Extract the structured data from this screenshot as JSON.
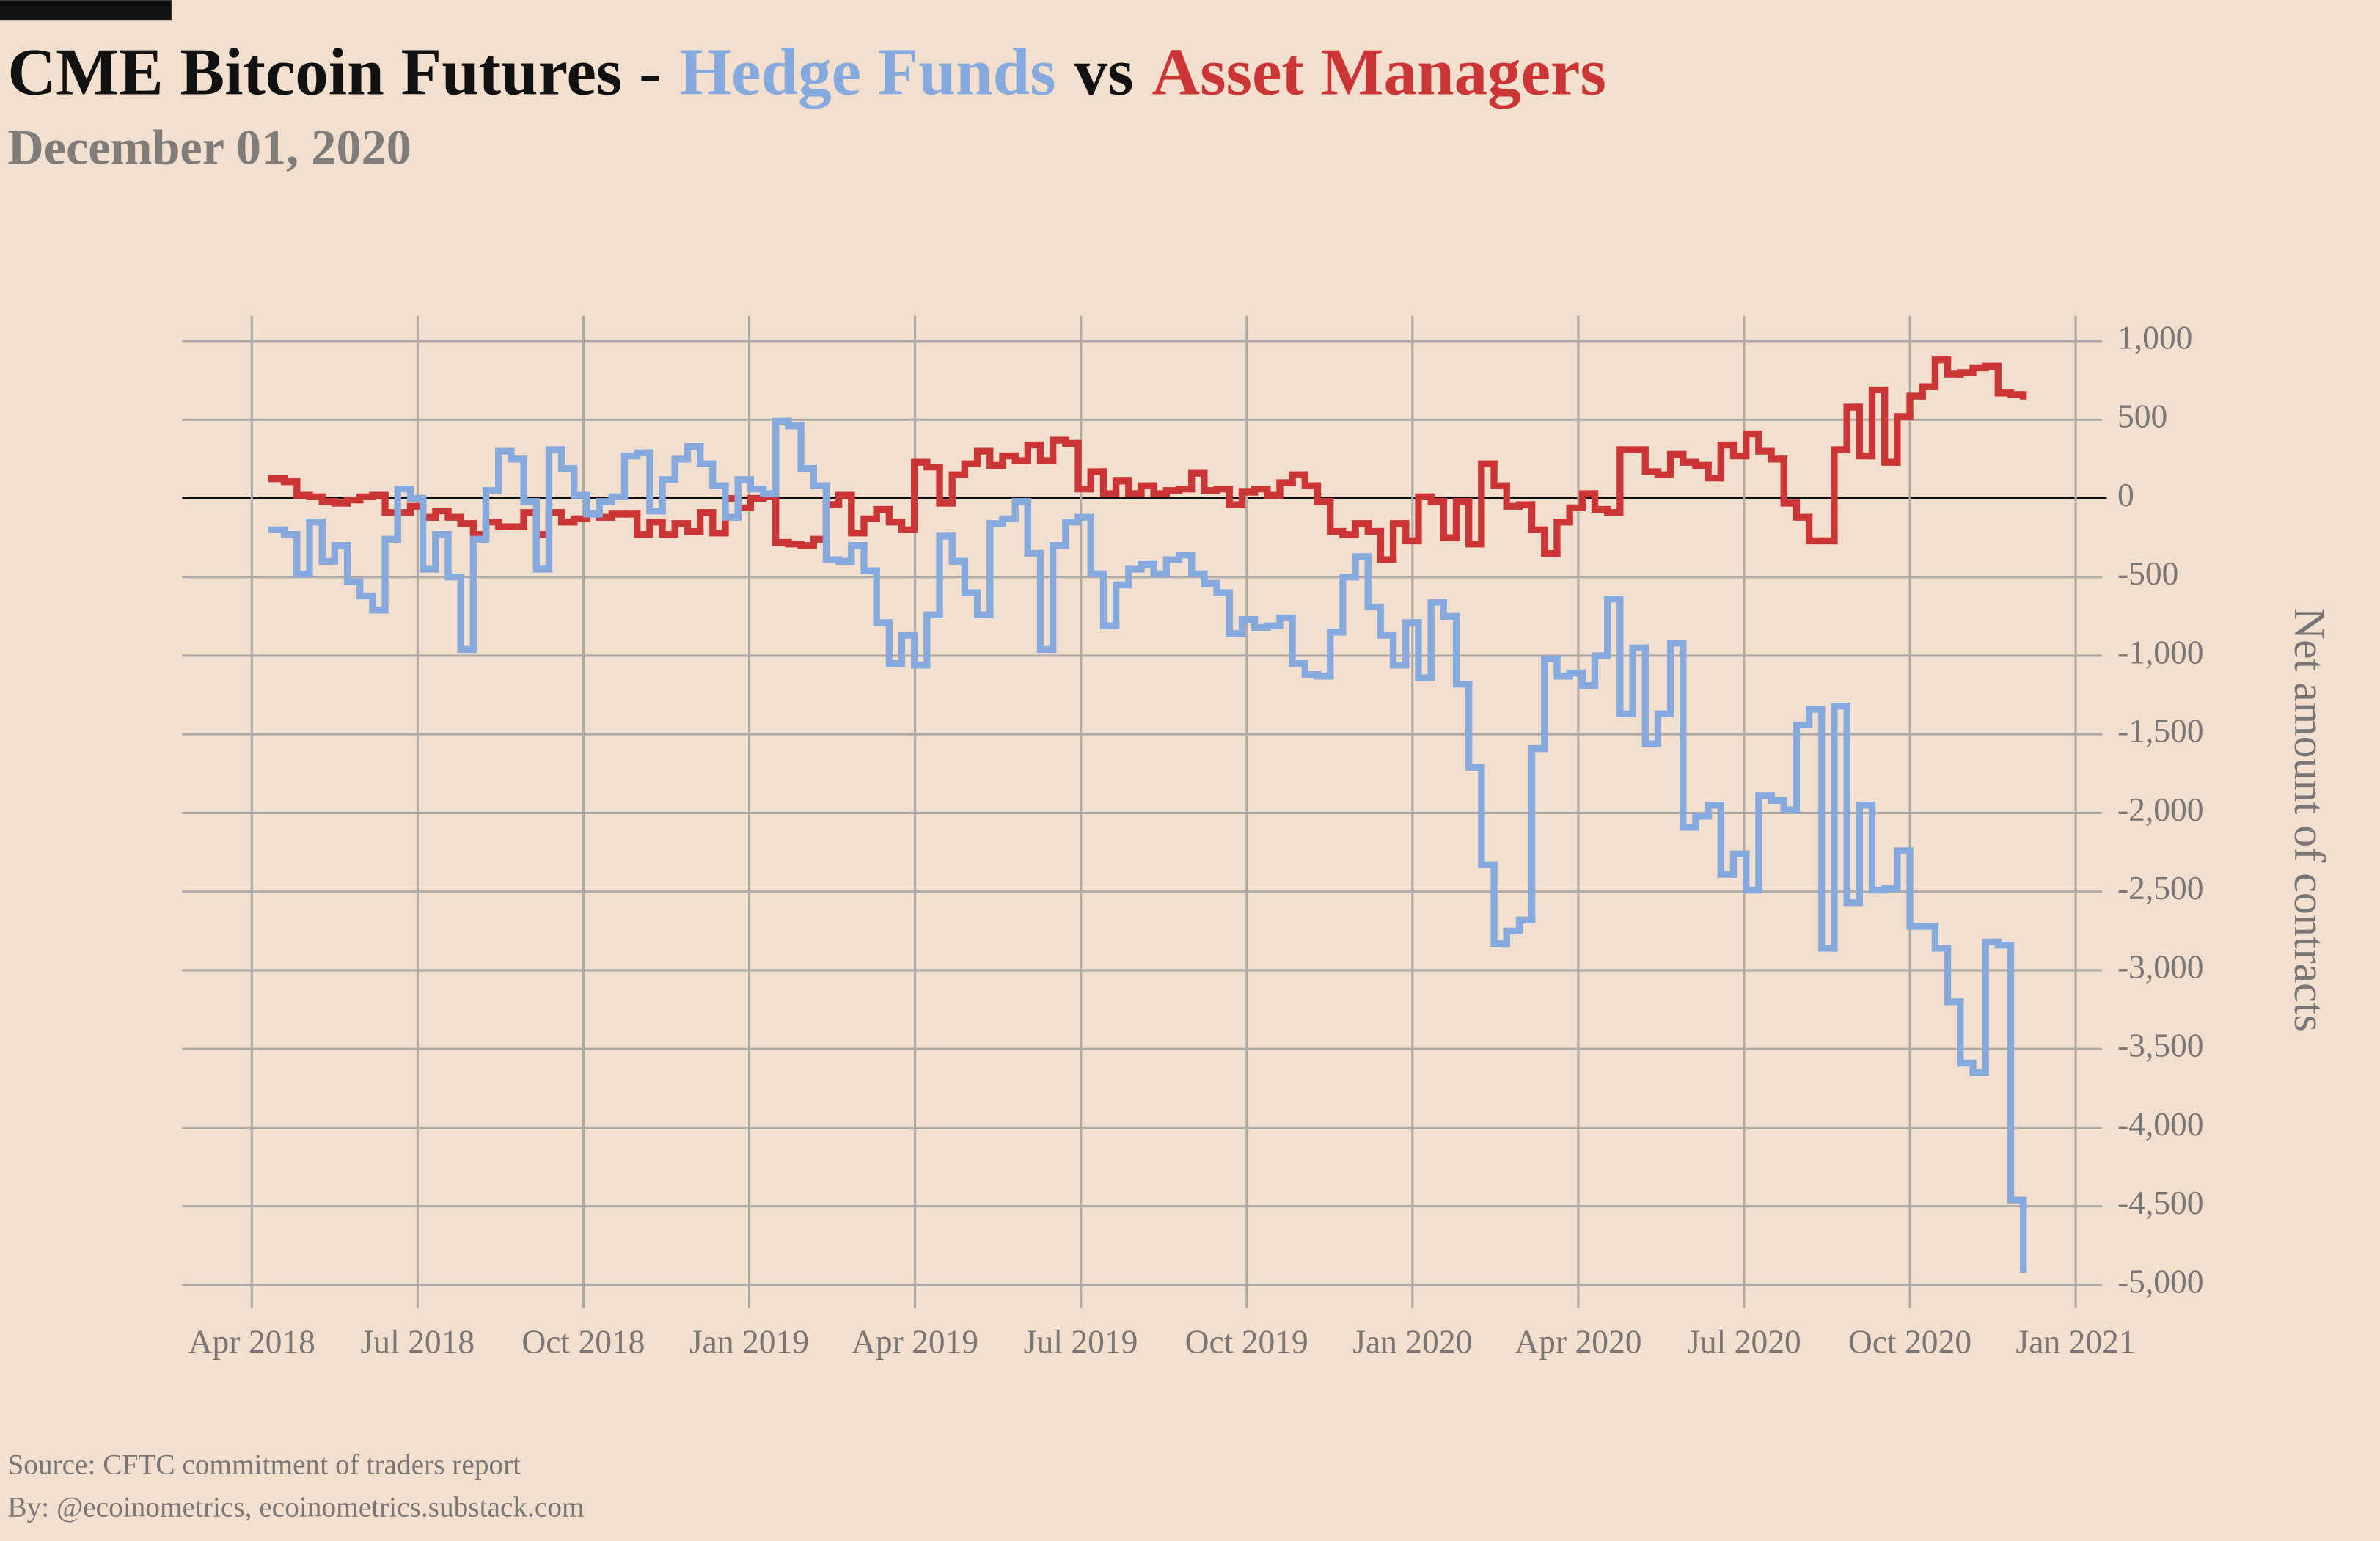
{
  "chart_data": {
    "type": "step-line",
    "title": "CME Bitcoin Futures -",
    "title_connector": "vs",
    "subtitle": "December 01, 2020",
    "y_axis_label": "Net amount of contracts",
    "source": "Source: CFTC commitment of traders report",
    "credit": "By: @ecoinometrics, ecoinometrics.substack.com",
    "grid": true,
    "y_axis_side": "right",
    "xlim": [
      2018.145,
      2021.04
    ],
    "ylim": [
      -5150,
      1160
    ],
    "xticks": [
      {
        "value": 2018.25,
        "label": "Apr 2018"
      },
      {
        "value": 2018.5,
        "label": "Jul 2018"
      },
      {
        "value": 2018.75,
        "label": "Oct 2018"
      },
      {
        "value": 2019,
        "label": "Jan 2019"
      },
      {
        "value": 2019.25,
        "label": "Apr 2019"
      },
      {
        "value": 2019.5,
        "label": "Jul 2019"
      },
      {
        "value": 2019.75,
        "label": "Oct 2019"
      },
      {
        "value": 2020,
        "label": "Jan 2020"
      },
      {
        "value": 2020.25,
        "label": "Apr 2020"
      },
      {
        "value": 2020.5,
        "label": "Jul 2020"
      },
      {
        "value": 2020.75,
        "label": "Oct 2020"
      },
      {
        "value": 2021,
        "label": "Jan 2021"
      }
    ],
    "yticks": [
      {
        "value": 1000,
        "label": "1,000"
      },
      500,
      0,
      -500,
      {
        "value": -1000,
        "label": "-1,000"
      },
      {
        "value": -1500,
        "label": "-1,500"
      },
      {
        "value": -2000,
        "label": "-2,000"
      },
      {
        "value": -2500,
        "label": "-2,500"
      },
      {
        "value": -3000,
        "label": "-3,000"
      },
      {
        "value": -3500,
        "label": "-3,500"
      },
      {
        "value": -4000,
        "label": "-4,000"
      },
      {
        "value": -4500,
        "label": "-4,500"
      },
      {
        "value": -5000,
        "label": "-5,000"
      }
    ],
    "x": [
      2018.28,
      2018.299,
      2018.318,
      2018.337,
      2018.356,
      2018.375,
      2018.394,
      2018.413,
      2018.432,
      2018.451,
      2018.47,
      2018.489,
      2018.508,
      2018.527,
      2018.546,
      2018.565,
      2018.584,
      2018.603,
      2018.622,
      2018.641,
      2018.66,
      2018.679,
      2018.698,
      2018.717,
      2018.736,
      2018.755,
      2018.774,
      2018.793,
      2018.812,
      2018.831,
      2018.85,
      2018.869,
      2018.888,
      2018.907,
      2018.926,
      2018.945,
      2018.964,
      2018.983,
      2019.002,
      2019.021,
      2019.04,
      2019.059,
      2019.078,
      2019.097,
      2019.116,
      2019.135,
      2019.154,
      2019.173,
      2019.192,
      2019.211,
      2019.23,
      2019.249,
      2019.268,
      2019.287,
      2019.306,
      2019.325,
      2019.344,
      2019.363,
      2019.382,
      2019.401,
      2019.42,
      2019.439,
      2019.458,
      2019.477,
      2019.496,
      2019.515,
      2019.534,
      2019.553,
      2019.572,
      2019.591,
      2019.61,
      2019.629,
      2019.648,
      2019.667,
      2019.686,
      2019.705,
      2019.724,
      2019.743,
      2019.762,
      2019.781,
      2019.8,
      2019.819,
      2019.838,
      2019.857,
      2019.876,
      2019.895,
      2019.914,
      2019.933,
      2019.952,
      2019.971,
      2019.99,
      2020.009,
      2020.028,
      2020.047,
      2020.066,
      2020.085,
      2020.104,
      2020.123,
      2020.142,
      2020.161,
      2020.18,
      2020.199,
      2020.218,
      2020.237,
      2020.256,
      2020.275,
      2020.294,
      2020.313,
      2020.332,
      2020.351,
      2020.37,
      2020.389,
      2020.408,
      2020.427,
      2020.446,
      2020.465,
      2020.484,
      2020.503,
      2020.522,
      2020.541,
      2020.56,
      2020.579,
      2020.598,
      2020.617,
      2020.636,
      2020.655,
      2020.674,
      2020.693,
      2020.712,
      2020.731,
      2020.75,
      2020.769,
      2020.788,
      2020.807,
      2020.826,
      2020.845,
      2020.864,
      2020.883,
      2020.902,
      2020.921
    ],
    "series": [
      {
        "name": "Hedge Funds",
        "color": "#86a9de",
        "values": [
          -200,
          -230,
          -480,
          -150,
          -400,
          -300,
          -530,
          -620,
          -710,
          -260,
          60,
          0,
          -450,
          -230,
          -500,
          -960,
          -260,
          50,
          300,
          250,
          -20,
          -450,
          310,
          190,
          20,
          -100,
          -20,
          10,
          270,
          290,
          -80,
          120,
          250,
          330,
          220,
          80,
          -120,
          120,
          60,
          30,
          490,
          460,
          190,
          80,
          -390,
          -400,
          -300,
          -460,
          -790,
          -1050,
          -870,
          -1060,
          -740,
          -240,
          -400,
          -600,
          -740,
          -160,
          -130,
          -20,
          -350,
          -960,
          -300,
          -150,
          -120,
          -480,
          -810,
          -550,
          -450,
          -420,
          -480,
          -390,
          -360,
          -480,
          -540,
          -600,
          -860,
          -770,
          -820,
          -810,
          -760,
          -1050,
          -1120,
          -1130,
          -850,
          -500,
          -370,
          -690,
          -870,
          -1060,
          -790,
          -1140,
          -660,
          -750,
          -1180,
          -1710,
          -2330,
          -2830,
          -2750,
          -2680,
          -1590,
          -1020,
          -1130,
          -1110,
          -1190,
          -1000,
          -640,
          -1370,
          -950,
          -1560,
          -1370,
          -920,
          -2090,
          -2020,
          -1950,
          -2390,
          -2260,
          -2490,
          -1890,
          -1920,
          -1980,
          -1440,
          -1340,
          -2860,
          -1320,
          -2570,
          -1950,
          -2490,
          -2480,
          -2240,
          -2720,
          -2720,
          -2860,
          -3200,
          -3590,
          -3650,
          -2820,
          -2840,
          -4460,
          -4900
        ]
      },
      {
        "name": "Asset Managers",
        "color": "#cc3535",
        "values": [
          125,
          106,
          20,
          10,
          -20,
          -30,
          -10,
          10,
          20,
          -90,
          -90,
          -50,
          -120,
          -80,
          -120,
          -160,
          -230,
          -150,
          -180,
          -180,
          -90,
          -230,
          -90,
          -150,
          -130,
          -100,
          -120,
          -100,
          -100,
          -230,
          -150,
          -230,
          -160,
          -210,
          -90,
          -220,
          0,
          -60,
          0,
          10,
          -280,
          -290,
          -300,
          -260,
          -40,
          20,
          -220,
          -130,
          -70,
          -150,
          -200,
          230,
          200,
          -30,
          150,
          220,
          300,
          210,
          270,
          240,
          340,
          240,
          370,
          350,
          60,
          170,
          30,
          110,
          30,
          80,
          30,
          50,
          60,
          160,
          50,
          60,
          -40,
          40,
          60,
          20,
          100,
          150,
          80,
          -20,
          -210,
          -230,
          -160,
          -210,
          -390,
          -160,
          -270,
          10,
          -20,
          -250,
          -20,
          -290,
          220,
          80,
          -50,
          -40,
          -200,
          -350,
          -150,
          -60,
          30,
          -70,
          -90,
          310,
          310,
          170,
          150,
          280,
          230,
          210,
          130,
          340,
          270,
          410,
          300,
          250,
          -30,
          -120,
          -270,
          -270,
          310,
          580,
          270,
          690,
          230,
          520,
          650,
          710,
          880,
          790,
          800,
          830,
          840,
          670,
          660,
          650
        ]
      }
    ]
  }
}
